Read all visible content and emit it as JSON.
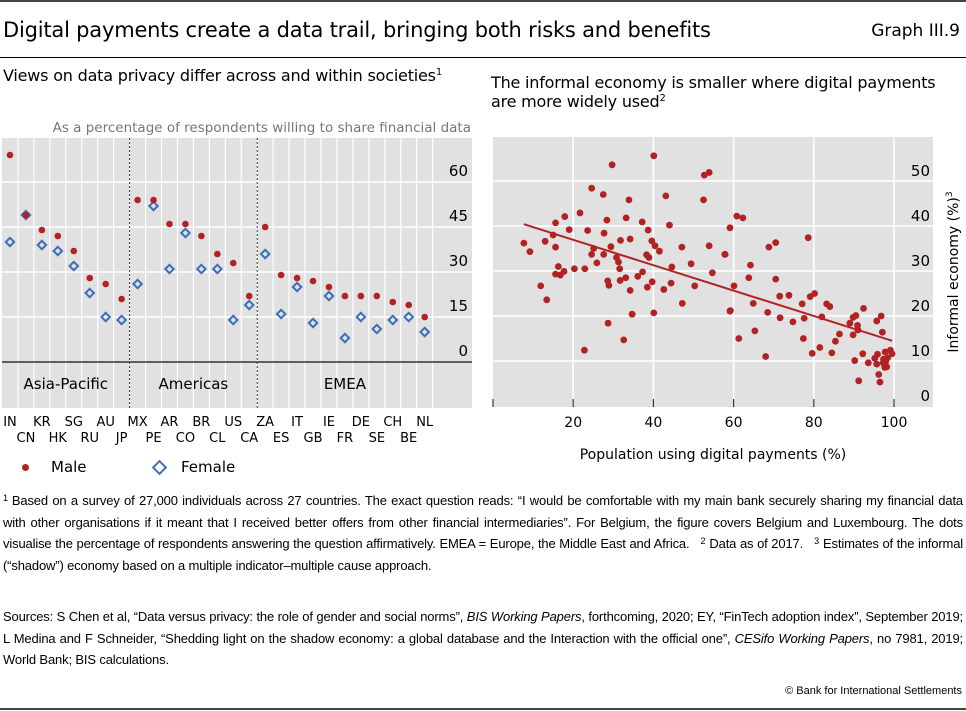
{
  "header": {
    "title": "Digital payments create a data trail, bringing both risks and benefits",
    "graph_number": "Graph III.9"
  },
  "colors": {
    "male": "#b22222",
    "female": "#3b6fb6",
    "plot_background": "#e1e1e1",
    "trend_line": "#b22222"
  },
  "legend": {
    "male_label": "Male",
    "female_label": "Female"
  },
  "chart_data": [
    {
      "type": "scatter",
      "title": "Views on data privacy differ across and within societies",
      "title_footnote": "1",
      "subtitle": "As a percentage of respondents willing to share financial data",
      "ylim": [
        0,
        60
      ],
      "yticks": [
        0,
        15,
        30,
        45,
        60
      ],
      "y_axis_side": "right",
      "grid": true,
      "regions": [
        {
          "label": "Asia-Pacific",
          "countries": [
            "IN",
            "CN",
            "KR",
            "HK",
            "SG",
            "RU",
            "AU",
            "JP"
          ]
        },
        {
          "label": "Americas",
          "countries": [
            "MX",
            "PE",
            "AR",
            "CO",
            "BR",
            "CL",
            "US",
            "CA"
          ]
        },
        {
          "label": "EMEA",
          "countries": [
            "ZA",
            "ES",
            "IT",
            "GB",
            "IE",
            "FR",
            "DE",
            "SE",
            "CH",
            "BE",
            "NL"
          ]
        }
      ],
      "categories": [
        "IN",
        "CN",
        "KR",
        "HK",
        "SG",
        "RU",
        "AU",
        "JP",
        "MX",
        "PE",
        "AR",
        "CO",
        "BR",
        "CL",
        "US",
        "CA",
        "ZA",
        "ES",
        "IT",
        "GB",
        "IE",
        "FR",
        "DE",
        "SE",
        "CH",
        "BE",
        "NL"
      ],
      "series": [
        {
          "name": "Male",
          "marker": "dot",
          "values": [
            69,
            49,
            44,
            42,
            37,
            28,
            26,
            21,
            54,
            54,
            46,
            46,
            42,
            36,
            33,
            22,
            45,
            29,
            28,
            27,
            25,
            22,
            22,
            22,
            20,
            19,
            15
          ]
        },
        {
          "name": "Female",
          "marker": "diamond",
          "values": [
            40,
            49,
            39,
            37,
            32,
            23,
            15,
            14,
            26,
            52,
            31,
            43,
            31,
            31,
            14,
            19,
            36,
            16,
            25,
            13,
            22,
            8,
            15,
            11,
            14,
            15,
            10
          ]
        }
      ],
      "legend_position": "bottom-left"
    },
    {
      "type": "scatter",
      "title": "The informal economy is smaller where digital payments are more widely used",
      "title_footnote": "2",
      "xlabel": "Population using digital payments (%)",
      "ylabel": "Informal economy (%)",
      "ylabel_footnote": "3",
      "xlim": [
        0,
        110
      ],
      "ylim": [
        0,
        55
      ],
      "xticks": [
        20,
        40,
        60,
        80,
        100
      ],
      "yticks": [
        0,
        10,
        20,
        30,
        40,
        50
      ],
      "y_axis_side": "right",
      "grid": true,
      "trend_line": {
        "x": [
          7.7,
          99.5
        ],
        "y": [
          40.4,
          14.5
        ]
      },
      "points": [
        [
          40.1,
          55.6
        ],
        [
          29.7,
          53.6
        ],
        [
          24.6,
          48.4
        ],
        [
          27.5,
          47.0
        ],
        [
          33.9,
          45.8
        ],
        [
          43.1,
          46.7
        ],
        [
          52.7,
          51.3
        ],
        [
          53.9,
          51.9
        ],
        [
          52.5,
          45.8
        ],
        [
          21.7,
          42.9
        ],
        [
          17.9,
          42.1
        ],
        [
          15.6,
          40.7
        ],
        [
          19.0,
          39.2
        ],
        [
          15.0,
          38.0
        ],
        [
          23.6,
          39.0
        ],
        [
          28.4,
          41.3
        ],
        [
          33.2,
          41.8
        ],
        [
          37.2,
          40.9
        ],
        [
          38.7,
          39.1
        ],
        [
          44.0,
          40.2
        ],
        [
          27.7,
          38.4
        ],
        [
          31.8,
          36.8
        ],
        [
          34.2,
          37.1
        ],
        [
          7.7,
          36.2
        ],
        [
          9.2,
          34.3
        ],
        [
          13.0,
          36.6
        ],
        [
          15.6,
          35.3
        ],
        [
          25.1,
          35.0
        ],
        [
          24.6,
          33.7
        ],
        [
          27.6,
          33.7
        ],
        [
          29.4,
          35.4
        ],
        [
          30.8,
          33.0
        ],
        [
          31.3,
          32.0
        ],
        [
          25.9,
          31.8
        ],
        [
          31.6,
          30.5
        ],
        [
          39.6,
          36.7
        ],
        [
          40.4,
          35.6
        ],
        [
          41.5,
          34.4
        ],
        [
          38.3,
          33.6
        ],
        [
          38.9,
          33.0
        ],
        [
          47.1,
          35.3
        ],
        [
          53.9,
          35.6
        ],
        [
          49.4,
          31.6
        ],
        [
          44.6,
          30.9
        ],
        [
          54.7,
          29.6
        ],
        [
          57.8,
          33.7
        ],
        [
          59.1,
          39.6
        ],
        [
          16.3,
          31.0
        ],
        [
          15.6,
          29.3
        ],
        [
          16.8,
          29.1
        ],
        [
          17.7,
          29.9
        ],
        [
          20.3,
          30.5
        ],
        [
          22.9,
          30.5
        ],
        [
          11.9,
          26.7
        ],
        [
          13.4,
          23.6
        ],
        [
          28.6,
          27.8
        ],
        [
          28.9,
          26.8
        ],
        [
          31.7,
          27.9
        ],
        [
          33.1,
          28.5
        ],
        [
          36.1,
          28.8
        ],
        [
          37.3,
          29.8
        ],
        [
          34.2,
          25.7
        ],
        [
          38.5,
          26.4
        ],
        [
          39.7,
          27.6
        ],
        [
          42.6,
          25.9
        ],
        [
          44.4,
          27.3
        ],
        [
          50.3,
          26.7
        ],
        [
          47.2,
          22.8
        ],
        [
          34.7,
          20.4
        ],
        [
          40.1,
          20.7
        ],
        [
          28.7,
          18.4
        ],
        [
          32.6,
          14.7
        ],
        [
          22.8,
          12.4
        ],
        [
          59.1,
          21.1
        ],
        [
          60.8,
          42.2
        ],
        [
          62.3,
          41.8
        ],
        [
          57.9,
          33.7
        ],
        [
          64.2,
          31.3
        ],
        [
          63.8,
          28.5
        ],
        [
          60.1,
          26.7
        ],
        [
          59.2,
          21.2
        ],
        [
          61.3,
          15.0
        ],
        [
          64.9,
          22.8
        ],
        [
          65.3,
          16.7
        ],
        [
          68.8,
          35.3
        ],
        [
          70.5,
          36.3
        ],
        [
          70.5,
          28.2
        ],
        [
          71.5,
          24.4
        ],
        [
          73.8,
          24.6
        ],
        [
          68.5,
          20.8
        ],
        [
          71.6,
          19.6
        ],
        [
          74.8,
          18.7
        ],
        [
          68.0,
          11.0
        ],
        [
          78.6,
          37.4
        ],
        [
          77.1,
          22.7
        ],
        [
          77.6,
          19.5
        ],
        [
          77.4,
          15.0
        ],
        [
          79.1,
          24.3
        ],
        [
          80.2,
          25.0
        ],
        [
          82.0,
          19.8
        ],
        [
          79.6,
          11.7
        ],
        [
          81.5,
          13.0
        ],
        [
          83.2,
          22.7
        ],
        [
          84.0,
          22.1
        ],
        [
          84.5,
          11.8
        ],
        [
          85.4,
          14.4
        ],
        [
          86.4,
          16.0
        ],
        [
          89.0,
          18.4
        ],
        [
          89.8,
          19.7
        ],
        [
          90.5,
          20.1
        ],
        [
          90.9,
          17.9
        ],
        [
          91.0,
          16.9
        ],
        [
          89.8,
          15.8
        ],
        [
          92.4,
          21.7
        ],
        [
          90.2,
          10.1
        ],
        [
          92.2,
          11.6
        ],
        [
          91.2,
          5.6
        ],
        [
          93.6,
          9.6
        ],
        [
          95.7,
          18.9
        ],
        [
          96.8,
          20.0
        ],
        [
          97.1,
          16.4
        ],
        [
          95.2,
          10.6
        ],
        [
          95.9,
          11.5
        ],
        [
          95.7,
          9.3
        ],
        [
          96.2,
          7.0
        ],
        [
          96.5,
          5.3
        ],
        [
          97.4,
          10.4
        ],
        [
          97.8,
          12.0
        ],
        [
          97.3,
          9.6
        ],
        [
          97.7,
          8.6
        ],
        [
          98.2,
          8.7
        ],
        [
          98.4,
          10.7
        ],
        [
          99.1,
          12.4
        ],
        [
          99.5,
          11.6
        ],
        [
          97.9,
          9.8
        ]
      ]
    }
  ],
  "footnotes": {
    "note1_mark": "1",
    "note1": "Based on a survey of 27,000 individuals across 27 countries. The exact question reads: “I would be comfortable with my main bank securely sharing my financial data with other organisations if it meant that I received better offers from other financial intermediaries”. For Belgium, the figure covers Belgium and Luxembourg. The dots visualise the percentage of respondents answering the question affirmatively. EMEA = Europe, the Middle East and Africa.",
    "note2_mark": "2",
    "note2": "Data as of 2017.",
    "note3_mark": "3",
    "note3": "Estimates of the informal (“shadow”) economy based on a multiple indicator–multiple cause approach."
  },
  "sources": {
    "prefix": "Sources: S Chen et al, “Data versus privacy: the role of gender and social norms”, ",
    "pub1": "BIS Working Papers",
    "mid1": ", forthcoming, 2020; EY, “FinTech adoption index”, September 2019; L Medina and F Schneider, “Shedding light on the shadow economy: a global database and the Interaction with the official one”, ",
    "pub2": "CESifo Working Papers",
    "suffix": ", no 7981, 2019; World Bank; BIS calculations."
  },
  "copyright": "© Bank for International Settlements"
}
